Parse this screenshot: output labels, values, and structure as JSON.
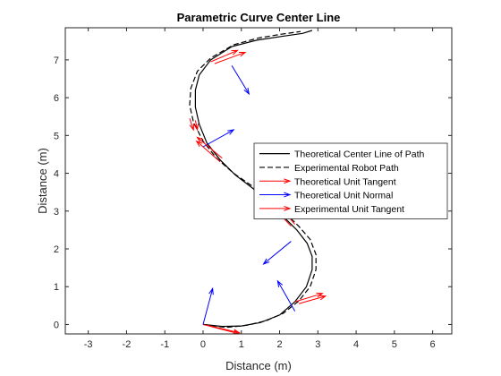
{
  "chart_data": {
    "type": "line",
    "title": "Parametric Curve Center Line",
    "xlabel": "Distance (m)",
    "ylabel": "Distance (m)",
    "xlim": [
      -3.6,
      6.5
    ],
    "ylim": [
      -0.25,
      7.85
    ],
    "xticks": [
      -3,
      -2,
      -1,
      0,
      1,
      2,
      3,
      4,
      5,
      6
    ],
    "yticks": [
      0,
      1,
      2,
      3,
      4,
      5,
      6,
      7
    ],
    "grid": false,
    "legend_position": "right",
    "series": [
      {
        "name": "Theoretical Center Line of Path",
        "style": "solid",
        "color": "#000000",
        "x": [
          0,
          0.5,
          1.0,
          1.5,
          2.0,
          2.4,
          2.7,
          2.85,
          2.85,
          2.72,
          2.45,
          2.1,
          1.7,
          1.3,
          0.85,
          0.45,
          0.1,
          -0.1,
          -0.2,
          -0.2,
          -0.1,
          0.2,
          0.75,
          1.4,
          2.05,
          2.6,
          2.85
        ],
        "y": [
          0,
          -0.05,
          -0.04,
          0.05,
          0.25,
          0.6,
          1.0,
          1.45,
          1.8,
          2.15,
          2.5,
          2.85,
          3.25,
          3.6,
          3.95,
          4.35,
          4.8,
          5.3,
          5.75,
          6.2,
          6.6,
          7.0,
          7.35,
          7.52,
          7.62,
          7.7,
          7.78
        ]
      },
      {
        "name": "Experimental Robot Path",
        "style": "dashed",
        "color": "#000000",
        "x": [
          0,
          0.6,
          1.15,
          1.65,
          2.1,
          2.5,
          2.8,
          2.95,
          2.95,
          2.8,
          2.5,
          2.15,
          1.75,
          1.3,
          0.8,
          0.35,
          0.0,
          -0.25,
          -0.35,
          -0.32,
          -0.15,
          0.2,
          0.8,
          1.45,
          2.05,
          2.55
        ],
        "y": [
          0,
          -0.08,
          -0.02,
          0.1,
          0.3,
          0.62,
          1.0,
          1.45,
          1.85,
          2.25,
          2.6,
          2.95,
          3.3,
          3.65,
          4.0,
          4.4,
          4.85,
          5.35,
          5.8,
          6.25,
          6.7,
          7.05,
          7.4,
          7.58,
          7.68,
          7.75
        ]
      }
    ],
    "vectors": [
      {
        "name": "Theoretical Unit Tangent",
        "color": "#ff0000",
        "arrows": [
          {
            "x": 0.0,
            "y": 0.0,
            "dx": 0.95,
            "dy": -0.25
          },
          {
            "x": 2.4,
            "y": 0.6,
            "dx": 0.72,
            "dy": 0.22
          },
          {
            "x": 2.3,
            "y": 2.6,
            "dx": -0.65,
            "dy": 0.7
          },
          {
            "x": 0.45,
            "y": 4.3,
            "dx": -0.62,
            "dy": 0.55
          },
          {
            "x": -0.2,
            "y": 5.4,
            "dx": 0.05,
            "dy": -0.25
          },
          {
            "x": 0.3,
            "y": 6.9,
            "dx": 0.8,
            "dy": 0.3
          }
        ]
      },
      {
        "name": "Theoretical Unit Normal",
        "color": "#0000ff",
        "arrows": [
          {
            "x": 0.0,
            "y": 0.0,
            "dx": 0.25,
            "dy": 0.95
          },
          {
            "x": 2.4,
            "y": 0.35,
            "dx": -0.45,
            "dy": 0.8
          },
          {
            "x": 2.3,
            "y": 2.2,
            "dx": -0.72,
            "dy": -0.6
          },
          {
            "x": 0.0,
            "y": 4.7,
            "dx": 0.8,
            "dy": 0.45
          },
          {
            "x": 0.75,
            "y": 6.85,
            "dx": 0.45,
            "dy": -0.75
          }
        ]
      },
      {
        "name": "Experimental Unit Tangent",
        "color": "#ff0000",
        "arrows": [
          {
            "x": 0.1,
            "y": -0.02,
            "dx": 0.85,
            "dy": -0.2
          },
          {
            "x": 2.5,
            "y": 0.55,
            "dx": 0.7,
            "dy": 0.2
          },
          {
            "x": 2.4,
            "y": 2.65,
            "dx": -0.6,
            "dy": 0.7
          },
          {
            "x": 0.5,
            "y": 4.4,
            "dx": -0.65,
            "dy": 0.55
          },
          {
            "x": -0.35,
            "y": 5.45,
            "dx": 0.1,
            "dy": -0.3
          },
          {
            "x": 0.2,
            "y": 6.95,
            "dx": 0.7,
            "dy": 0.3
          }
        ]
      }
    ]
  }
}
